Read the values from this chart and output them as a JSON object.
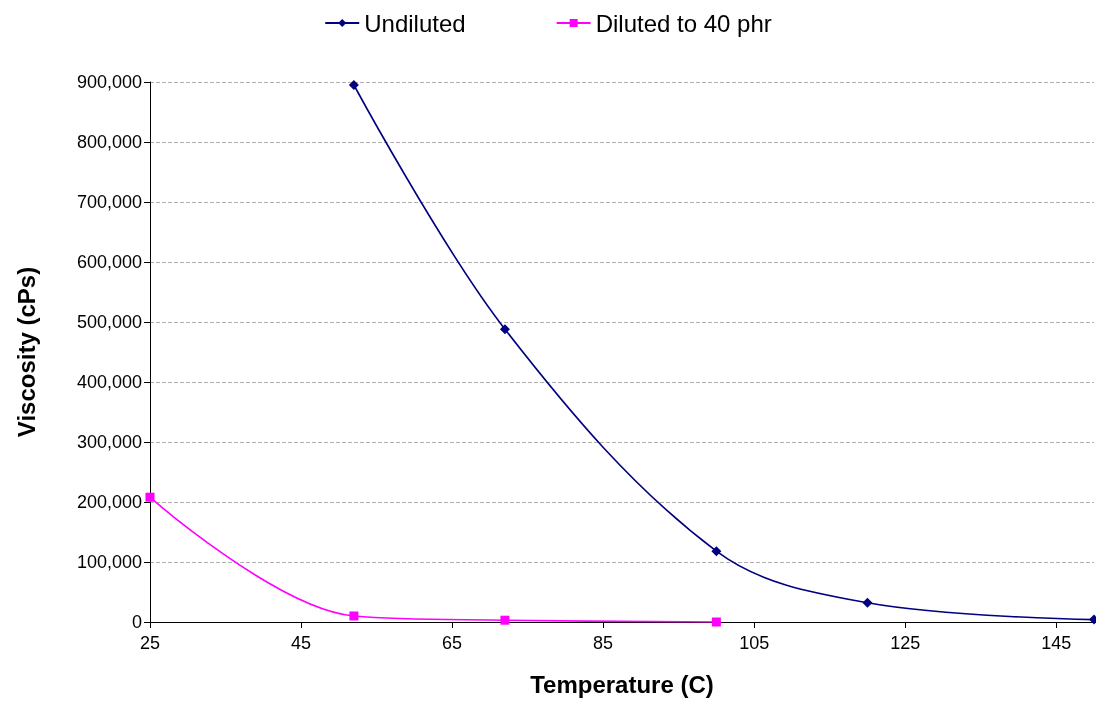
{
  "chart_data": {
    "type": "line",
    "xlabel": "Temperature (C)",
    "ylabel": "Viscosity (cPs)",
    "series": [
      {
        "name": "Undiluted",
        "color": "#000080",
        "marker": "diamond",
        "x": [
          52,
          72,
          100,
          120,
          150
        ],
        "values": [
          895000,
          488000,
          118000,
          32000,
          4000
        ]
      },
      {
        "name": "Diluted to 40 phr",
        "color": "#ff00ff",
        "marker": "square",
        "x": [
          25,
          52,
          72,
          100
        ],
        "values": [
          208000,
          10000,
          3000,
          0
        ]
      }
    ],
    "xlim": [
      25,
      150
    ],
    "xticks": [
      25,
      45,
      65,
      85,
      105,
      125,
      145
    ],
    "ylim": [
      0,
      900000
    ],
    "yticks": [
      0,
      {
        "value": 100000,
        "label": "100,000"
      },
      {
        "value": 200000,
        "label": "200,000"
      },
      {
        "value": 300000,
        "label": "300,000"
      },
      {
        "value": 400000,
        "label": "400,000"
      },
      {
        "value": 500000,
        "label": "500,000"
      },
      {
        "value": 600000,
        "label": "600,000"
      },
      {
        "value": 700000,
        "label": "700,000"
      },
      {
        "value": 800000,
        "label": "800,000"
      },
      {
        "value": 900000,
        "label": "900,000"
      }
    ],
    "grid": "y",
    "legend": "top",
    "line_style": "solid"
  }
}
